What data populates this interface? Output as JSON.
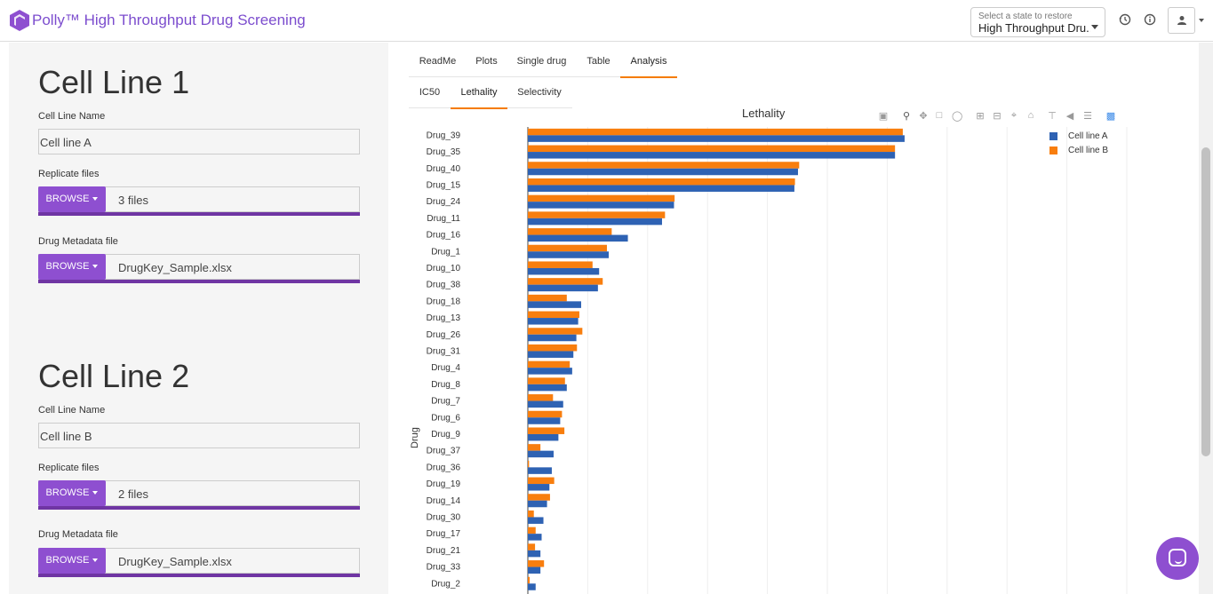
{
  "header": {
    "app_title": "Polly™ High Throughput Drug Screening",
    "state_select": {
      "label": "Select a state to restore",
      "value": "High Throughput Dru..."
    },
    "icons": [
      "history-icon",
      "info-icon",
      "user-icon"
    ]
  },
  "sidebar": {
    "cell_lines": [
      {
        "title": "Cell Line 1",
        "name_label": "Cell Line Name",
        "name_value": "Cell line A",
        "replicate_label": "Replicate files",
        "replicate_button": "BROWSE",
        "replicate_value": "3 files",
        "metadata_label": "Drug Metadata file",
        "metadata_button": "BROWSE",
        "metadata_value": "DrugKey_Sample.xlsx"
      },
      {
        "title": "Cell Line 2",
        "name_label": "Cell Line Name",
        "name_value": "Cell line B",
        "replicate_label": "Replicate files",
        "replicate_button": "BROWSE",
        "replicate_value": "2 files",
        "metadata_label": "Drug Metadata file",
        "metadata_button": "BROWSE",
        "metadata_value": "DrugKey_Sample.xlsx"
      }
    ]
  },
  "main_tabs": [
    "ReadMe",
    "Plots",
    "Single drug",
    "Table",
    "Analysis"
  ],
  "main_tab_active": "Analysis",
  "sub_tabs": [
    "IC50",
    "Lethality",
    "Selectivity"
  ],
  "sub_tab_active": "Lethality",
  "colors": {
    "accent": "#8e4fd0",
    "progress": "#6f35a3",
    "tab_underline": "#f57c00",
    "series_a": "#2e62b3",
    "series_b": "#f87e0e"
  },
  "chart_data": {
    "type": "bar",
    "orientation": "horizontal",
    "title": "Lethality",
    "ylabel": "Drug",
    "xlabel": "",
    "xlim": [
      0,
      1.0
    ],
    "grid": true,
    "legend_position": "top-right",
    "categories": [
      "Drug_39",
      "Drug_35",
      "Drug_40",
      "Drug_15",
      "Drug_24",
      "Drug_11",
      "Drug_16",
      "Drug_1",
      "Drug_10",
      "Drug_38",
      "Drug_18",
      "Drug_13",
      "Drug_26",
      "Drug_31",
      "Drug_4",
      "Drug_8",
      "Drug_7",
      "Drug_6",
      "Drug_9",
      "Drug_37",
      "Drug_36",
      "Drug_19",
      "Drug_14",
      "Drug_30",
      "Drug_17",
      "Drug_21",
      "Drug_33",
      "Drug_2"
    ],
    "series": [
      {
        "name": "Cell line A",
        "color": "#2e62b3",
        "values": [
          0.629,
          0.613,
          0.451,
          0.445,
          0.244,
          0.224,
          0.167,
          0.135,
          0.119,
          0.117,
          0.089,
          0.084,
          0.081,
          0.076,
          0.074,
          0.065,
          0.059,
          0.054,
          0.051,
          0.043,
          0.04,
          0.036,
          0.032,
          0.026,
          0.023,
          0.021,
          0.021,
          0.013
        ]
      },
      {
        "name": "Cell line B",
        "color": "#f87e0e",
        "values": [
          0.626,
          0.613,
          0.453,
          0.446,
          0.245,
          0.229,
          0.14,
          0.132,
          0.108,
          0.125,
          0.065,
          0.086,
          0.091,
          0.082,
          0.07,
          0.062,
          0.042,
          0.057,
          0.061,
          0.021,
          0.002,
          0.044,
          0.037,
          0.01,
          0.013,
          0.012,
          0.027,
          0.003
        ]
      }
    ]
  }
}
